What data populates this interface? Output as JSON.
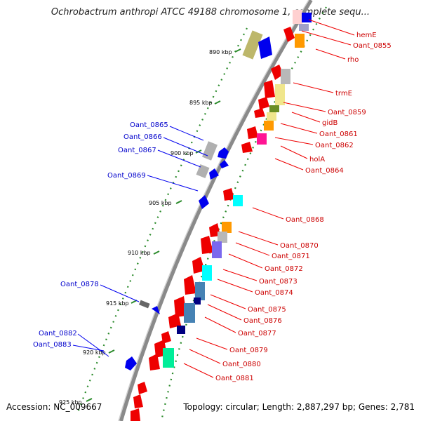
{
  "title": "Ochrobactrum anthropi ATCC 49188 chromosome 1, complete sequ...",
  "footer": {
    "accession": "Accession: NC_009667",
    "topology": "Topology: circular; Length: 2,887,297 bp; Genes: 2,781"
  },
  "colors": {
    "backbone": "#8a8a8a",
    "red_label": "#cc0000",
    "blue_label": "#0000cc",
    "dots": "#2a8a2a"
  },
  "kbp_ticks": [
    "890 kbp",
    "895 kbp",
    "900 kbp",
    "905 kbp",
    "910 kbp",
    "915 kbp",
    "920 kbp",
    "925 kbp"
  ],
  "right_labels": [
    "hemE",
    "Oant_0855",
    "rho",
    "trmE",
    "Oant_0859",
    "gidB",
    "Oant_0861",
    "Oant_0862",
    "holA",
    "Oant_0864",
    "Oant_0868",
    "Oant_0870",
    "Oant_0871",
    "Oant_0872",
    "Oant_0873",
    "Oant_0874",
    "Oant_0875",
    "Oant_0876",
    "Oant_0877",
    "Oant_0879",
    "Oant_0880",
    "Oant_0881"
  ],
  "left_labels": [
    "Oant_0865",
    "Oant_0866",
    "Oant_0867",
    "Oant_0869",
    "Oant_0878",
    "Oant_0882",
    "Oant_0883"
  ]
}
